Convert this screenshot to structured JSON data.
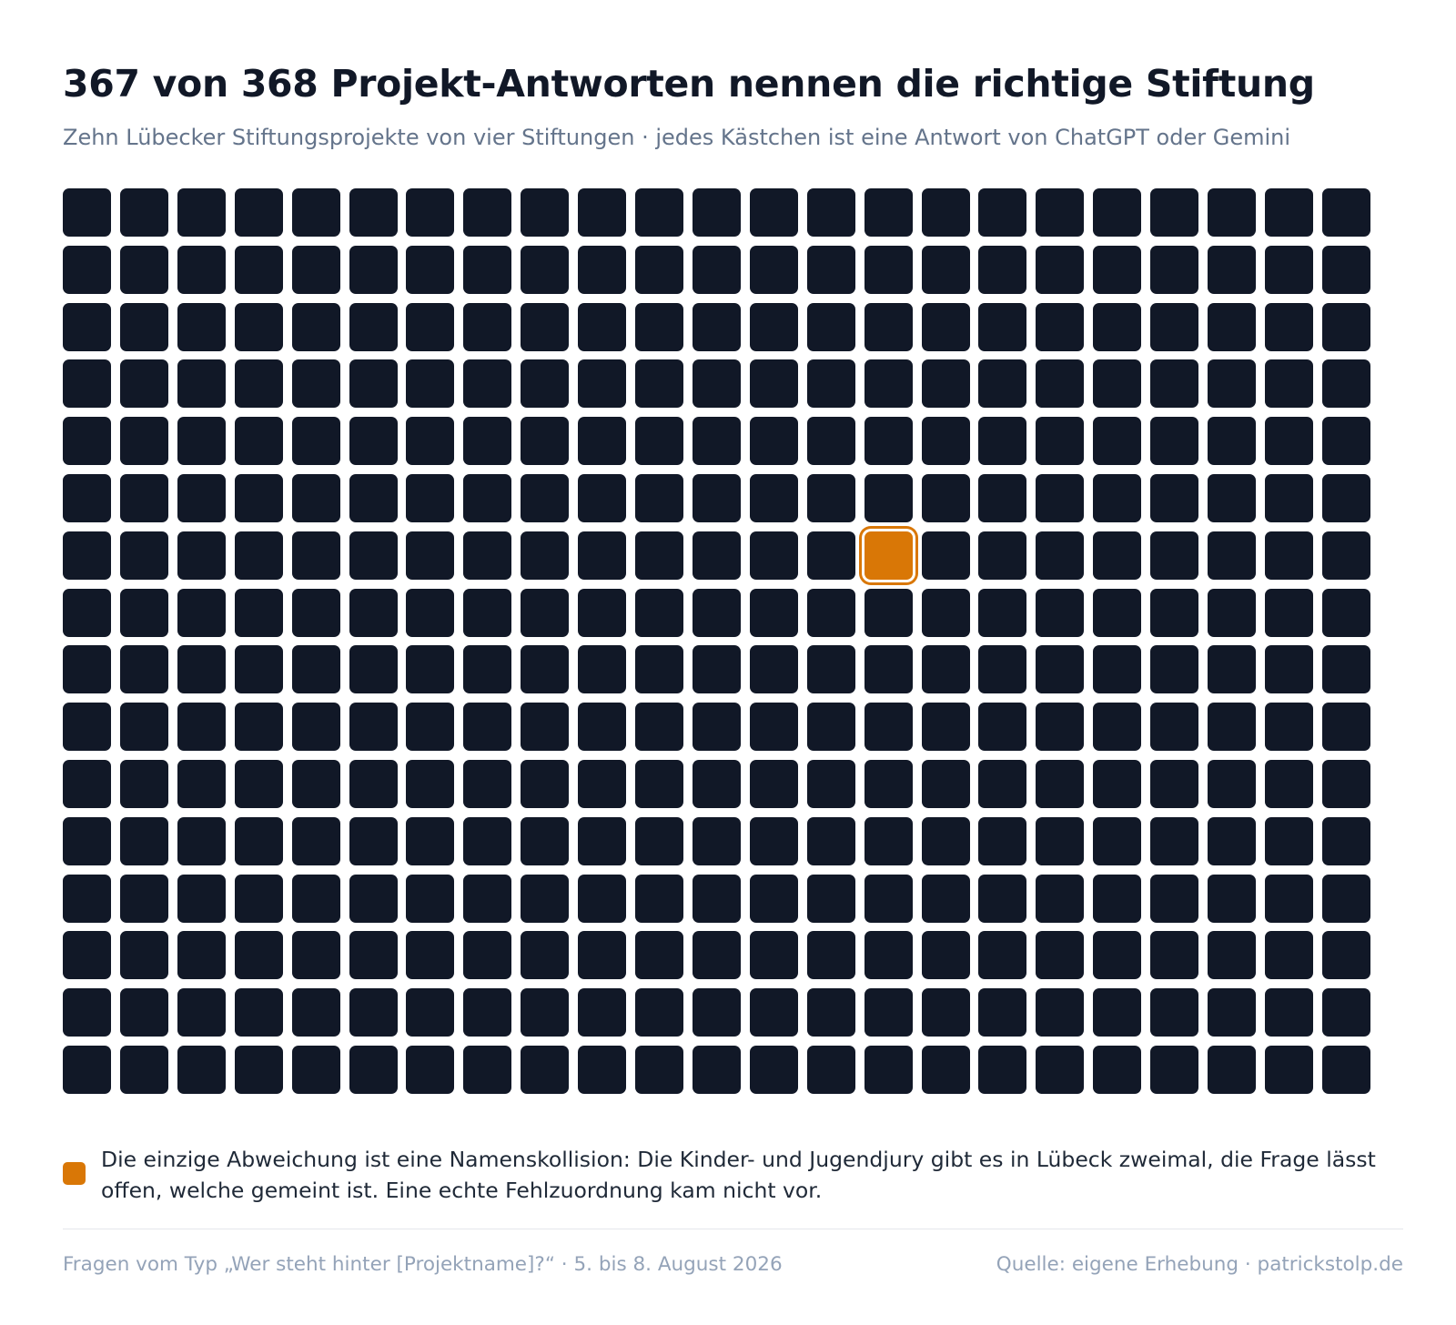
{
  "title": "367 von 368 Projekt-Antworten nennen die richtige Stiftung",
  "subtitle": "Zehn Lübecker Stiftungsprojekte von vier Stiftungen · jedes Kästchen ist eine Antwort von ChatGPT oder Gemini",
  "chart_data": {
    "type": "waffle",
    "total": 368,
    "columns": 23,
    "rows": 16,
    "categories": [
      "richtige Stiftung",
      "Namenskollision"
    ],
    "values": [
      367,
      1
    ],
    "highlight_index": 152,
    "colors": {
      "correct": "#111827",
      "deviation": "#d97706"
    },
    "title": "367 von 368 Projekt-Antworten nennen die richtige Stiftung"
  },
  "note": {
    "text": "Die einzige Abweichung ist eine Namenskollision: Die Kinder- und Jugendjury gibt es in Lübeck zweimal, die Frage lässt offen, welche gemeint ist. Eine echte Fehlzuordnung kam nicht vor.",
    "swatch_color": "#d97706"
  },
  "footer": {
    "left": "Fragen vom Typ „Wer steht hinter [Projektname]?“ · 5. bis 8. August 2026",
    "right": "Quelle: eigene Erhebung · patrickstolp.de"
  }
}
